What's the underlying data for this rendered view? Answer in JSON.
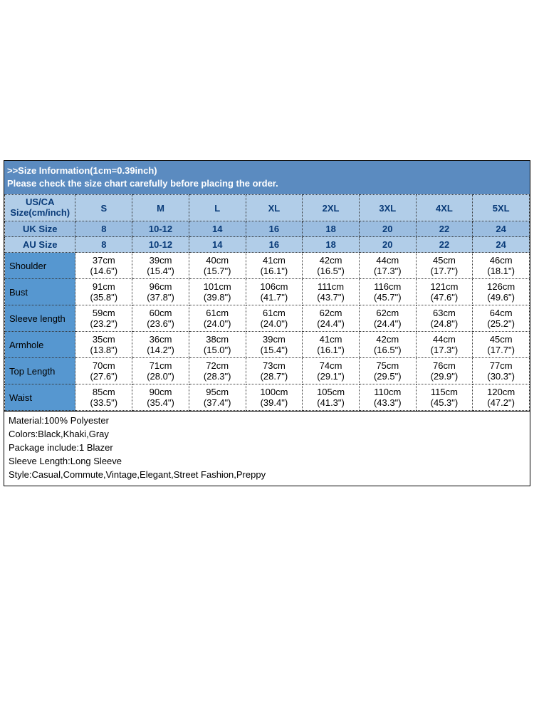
{
  "colors": {
    "banner_bg": "#5b8bc0",
    "banner_text": "#ffffff",
    "header_light_bg": "#b1cde8",
    "header_mid_bg": "#9bbde0",
    "header_text": "#083a78",
    "rowlabel_bg": "#5697d0",
    "data_bg": "#ffffff",
    "border": "#333333"
  },
  "banner": {
    "line1": ">>Size Information(1cm=0.39inch)",
    "line2": "Please check the size chart carefully before placing the order."
  },
  "table": {
    "header1_label_line1": "US/CA",
    "header1_label_line2": "Size(cm/inch)",
    "sizes": [
      "S",
      "M",
      "L",
      "XL",
      "2XL",
      "3XL",
      "4XL",
      "5XL"
    ],
    "header2_label": "UK Size",
    "uk_sizes": [
      "8",
      "10-12",
      "14",
      "16",
      "18",
      "20",
      "22",
      "24"
    ],
    "header3_label": "AU Size",
    "au_sizes": [
      "8",
      "10-12",
      "14",
      "16",
      "18",
      "20",
      "22",
      "24"
    ],
    "rows": [
      {
        "label": "Shoulder",
        "cm": [
          "37cm",
          "39cm",
          "40cm",
          "41cm",
          "42cm",
          "44cm",
          "45cm",
          "46cm"
        ],
        "in": [
          "(14.6\")",
          "(15.4\")",
          "(15.7\")",
          "(16.1\")",
          "(16.5\")",
          "(17.3\")",
          "(17.7\")",
          "(18.1\")"
        ]
      },
      {
        "label": "Bust",
        "cm": [
          "91cm",
          "96cm",
          "101cm",
          "106cm",
          "111cm",
          "116cm",
          "121cm",
          "126cm"
        ],
        "in": [
          "(35.8\")",
          "(37.8\")",
          "(39.8\")",
          "(41.7\")",
          "(43.7\")",
          "(45.7\")",
          "(47.6\")",
          "(49.6\")"
        ]
      },
      {
        "label": "Sleeve length",
        "cm": [
          "59cm",
          "60cm",
          "61cm",
          "61cm",
          "62cm",
          "62cm",
          "63cm",
          "64cm"
        ],
        "in": [
          "(23.2\")",
          "(23.6\")",
          "(24.0\")",
          "(24.0\")",
          "(24.4\")",
          "(24.4\")",
          "(24.8\")",
          "(25.2\")"
        ]
      },
      {
        "label": "Armhole",
        "cm": [
          "35cm",
          "36cm",
          "38cm",
          "39cm",
          "41cm",
          "42cm",
          "44cm",
          "45cm"
        ],
        "in": [
          "(13.8\")",
          "(14.2\")",
          "(15.0\")",
          "(15.4\")",
          "(16.1\")",
          "(16.5\")",
          "(17.3\")",
          "(17.7\")"
        ]
      },
      {
        "label": "Top Length",
        "cm": [
          "70cm",
          "71cm",
          "72cm",
          "73cm",
          "74cm",
          "75cm",
          "76cm",
          "77cm"
        ],
        "in": [
          "(27.6\")",
          "(28.0\")",
          "(28.3\")",
          "(28.7\")",
          "(29.1\")",
          "(29.5\")",
          "(29.9\")",
          "(30.3\")"
        ]
      },
      {
        "label": "Waist",
        "cm": [
          "85cm",
          "90cm",
          "95cm",
          "100cm",
          "105cm",
          "110cm",
          "115cm",
          "120cm"
        ],
        "in": [
          "(33.5\")",
          "(35.4\")",
          "(37.4\")",
          "(39.4\")",
          "(41.3\")",
          "(43.3\")",
          "(45.3\")",
          "(47.2\")"
        ]
      }
    ]
  },
  "info": {
    "material": "Material:100% Polyester",
    "colors_line": "Colors:Black,Khaki,Gray",
    "package": "Package include:1 Blazer",
    "sleeve": "Sleeve Length:Long Sleeve",
    "style": "Style:Casual,Commute,Vintage,Elegant,Street Fashion,Preppy"
  }
}
